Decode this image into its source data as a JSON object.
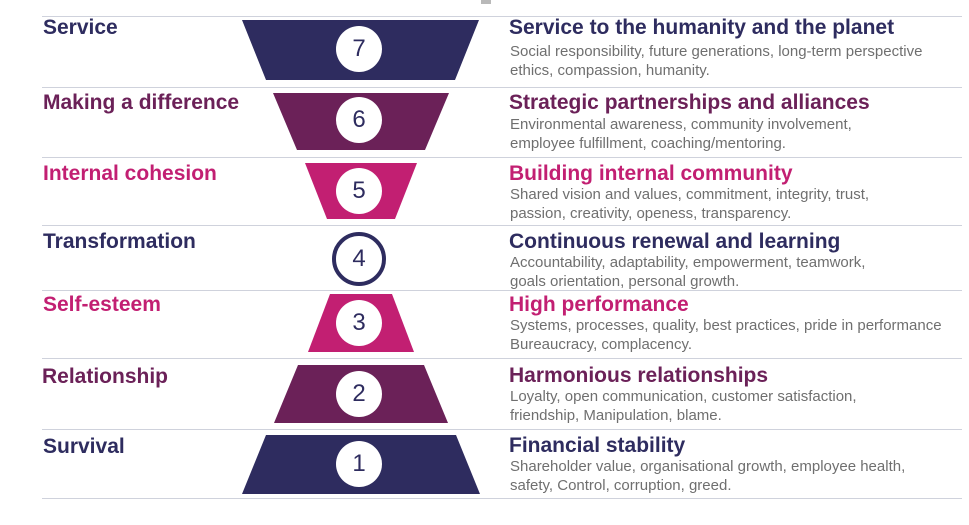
{
  "colors": {
    "navy": "#2e2c5f",
    "plum": "#6b2158",
    "magenta": "#c21f72"
  },
  "levels": [
    {
      "number": "7",
      "name": "Service",
      "title": "Service to the humanity and the planet",
      "line1": "Social responsibility, future generations, long-term perspective",
      "line2": "ethics, compassion, humanity.",
      "color": "#2e2c5f"
    },
    {
      "number": "6",
      "name": "Making a difference",
      "title": "Strategic partnerships and alliances",
      "line1": "Environmental awareness, community involvement,",
      "line2": "employee fulfillment, coaching/mentoring.",
      "color": "#6b2158"
    },
    {
      "number": "5",
      "name": "Internal cohesion",
      "title": "Building internal community",
      "line1": "Shared vision and values, commitment, integrity, trust,",
      "line2": "passion, creativity, openess, transparency.",
      "color": "#c21f72"
    },
    {
      "number": "4",
      "name": "Transformation",
      "title": "Continuous renewal and learning",
      "line1": "Accountability, adaptability, empowerment, teamwork,",
      "line2": "goals orientation, personal growth.",
      "color": "#2e2c5f"
    },
    {
      "number": "3",
      "name": "Self-esteem",
      "title": "High performance",
      "line1": "Systems, processes, quality, best practices, pride in performance",
      "line2": "Bureaucracy, complacency.",
      "color": "#c21f72"
    },
    {
      "number": "2",
      "name": "Relationship",
      "title": "Harmonious relationships",
      "line1": "Loyalty, open communication, customer satisfaction,",
      "line2": "friendship, Manipulation, blame.",
      "color": "#6b2158"
    },
    {
      "number": "1",
      "name": "Survival",
      "title": "Financial stability",
      "line1": "Shareholder value, organisational growth, employee health,",
      "line2": "safety, Control, corruption, greed.",
      "color": "#2e2c5f"
    }
  ]
}
